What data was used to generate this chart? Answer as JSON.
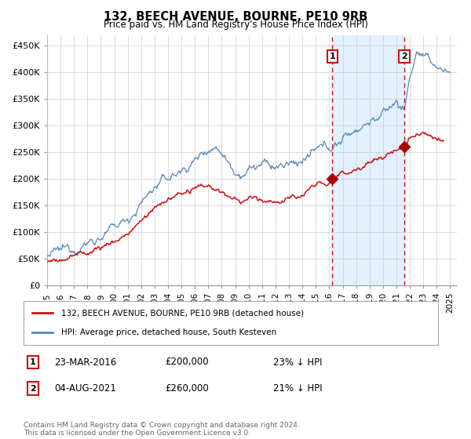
{
  "title": "132, BEECH AVENUE, BOURNE, PE10 9RB",
  "subtitle": "Price paid vs. HM Land Registry's House Price Index (HPI)",
  "ylabel_ticks": [
    "£0",
    "£50K",
    "£100K",
    "£150K",
    "£200K",
    "£250K",
    "£300K",
    "£350K",
    "£400K",
    "£450K"
  ],
  "ytick_values": [
    0,
    50000,
    100000,
    150000,
    200000,
    250000,
    300000,
    350000,
    400000,
    450000
  ],
  "ylim": [
    0,
    470000
  ],
  "xlim_start": 1995.0,
  "xlim_end": 2025.5,
  "sale1_date": 2016.22,
  "sale1_price": 200000,
  "sale1_label": "1",
  "sale2_date": 2021.58,
  "sale2_price": 260000,
  "sale2_label": "2",
  "hpi_color": "#5588bb",
  "hpi_fill_color": "#ddeeff",
  "property_color": "#cc1111",
  "vline_color": "#cc1111",
  "marker_color": "#aa0000",
  "legend_property": "132, BEECH AVENUE, BOURNE, PE10 9RB (detached house)",
  "legend_hpi": "HPI: Average price, detached house, South Kesteven",
  "ann1_date": "23-MAR-2016",
  "ann1_price": "£200,000",
  "ann1_pct": "23% ↓ HPI",
  "ann2_date": "04-AUG-2021",
  "ann2_price": "£260,000",
  "ann2_pct": "21% ↓ HPI",
  "footnote": "Contains HM Land Registry data © Crown copyright and database right 2024.\nThis data is licensed under the Open Government Licence v3.0.",
  "background_color": "#ffffff",
  "grid_color": "#cccccc"
}
